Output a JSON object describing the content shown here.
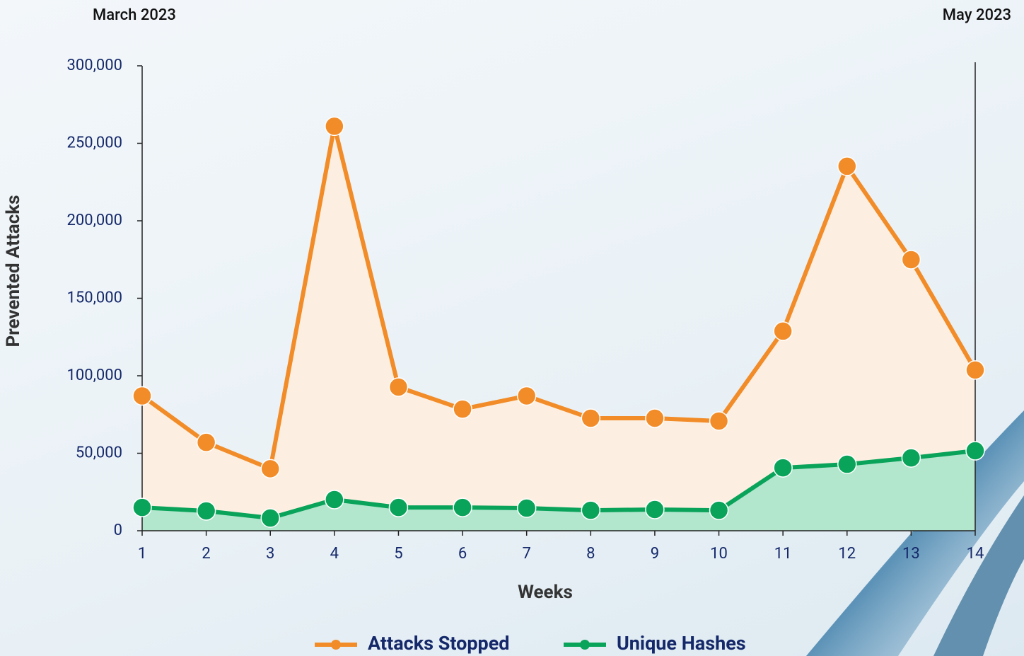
{
  "chart_data": {
    "type": "line",
    "fill_area": true,
    "header_left": "March 2023",
    "header_right": "May 2023",
    "x_label": "Weeks",
    "y_label": "Prevented Attacks",
    "x": [
      1,
      2,
      3,
      4,
      5,
      6,
      7,
      8,
      9,
      10,
      11,
      12,
      13,
      14
    ],
    "xlim": [
      1,
      14
    ],
    "xticks": [
      1,
      2,
      3,
      4,
      5,
      6,
      7,
      8,
      9,
      10,
      11,
      12,
      13,
      14
    ],
    "ylim": [
      0,
      300000
    ],
    "yticks": [
      0,
      {
        "value": 50000,
        "label": "50,000"
      },
      {
        "value": 100000,
        "label": "100,000"
      },
      {
        "value": 150000,
        "label": "150,000"
      },
      {
        "value": 200000,
        "label": "200,000"
      },
      {
        "value": 250000,
        "label": "250,000"
      },
      {
        "value": 300000,
        "label": "300,000"
      }
    ],
    "series": [
      {
        "name": "Attacks Stopped",
        "color": "#f28c28",
        "fill": "#fcefe2",
        "values": [
          87000,
          57000,
          40000,
          261000,
          92700,
          78500,
          87000,
          72600,
          72600,
          70800,
          128800,
          235200,
          174900,
          103700
        ]
      },
      {
        "name": "Unique Hashes",
        "color": "#0aa35a",
        "fill": "#b2e6cd",
        "values": [
          15000,
          12800,
          8200,
          20100,
          15000,
          15000,
          14600,
          13200,
          13700,
          13200,
          40600,
          42900,
          47000,
          51600
        ]
      }
    ]
  }
}
